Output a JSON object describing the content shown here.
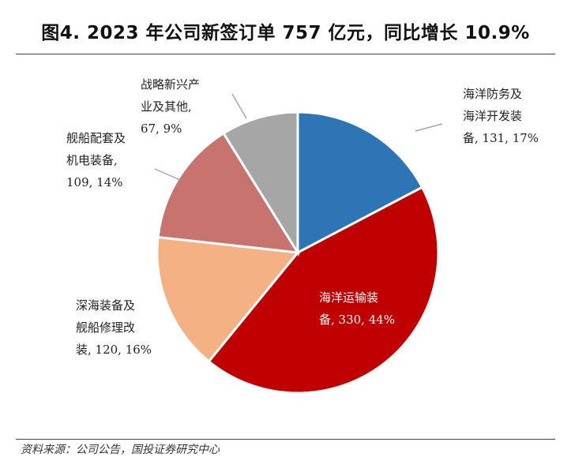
{
  "figure": {
    "title": "图4. 2023 年公司新签订单 757 亿元，同比增长 10.9%",
    "source": "资料来源：公司公告，国投证券研究中心"
  },
  "chart_data": {
    "type": "pie",
    "title": "图4. 2023 年公司新签订单 757 亿元，同比增长 10.9%",
    "start_angle_deg": 0,
    "direction": "clockwise",
    "slices": [
      {
        "name": "海洋防务及海洋开发装备",
        "value": 131,
        "percent": "17%",
        "color": "#2e75b6",
        "label_lines": [
          "海洋防务及",
          "海洋开发装",
          "备, 131, 17%"
        ]
      },
      {
        "name": "海洋运输装备",
        "value": 330,
        "percent": "44%",
        "color": "#c00000",
        "label_lines": [
          "海洋运输装",
          "备, 330, 44%"
        ]
      },
      {
        "name": "深海装备及舰船修理改装",
        "value": 120,
        "percent": "16%",
        "color": "#f4b183",
        "label_lines": [
          "深海装备及",
          "舰船修理改",
          "装, 120, 16%"
        ]
      },
      {
        "name": "舰船配套及机电装备",
        "value": 109,
        "percent": "14%",
        "color": "#c9736f",
        "label_lines": [
          "舰船配套及",
          "机电装备,",
          "109, 14%"
        ]
      },
      {
        "name": "战略新兴产业及其他",
        "value": 67,
        "percent": "9%",
        "color": "#a6a6a6",
        "label_lines": [
          "战略新兴产",
          "业及其他,",
          "67, 9%"
        ]
      }
    ]
  }
}
